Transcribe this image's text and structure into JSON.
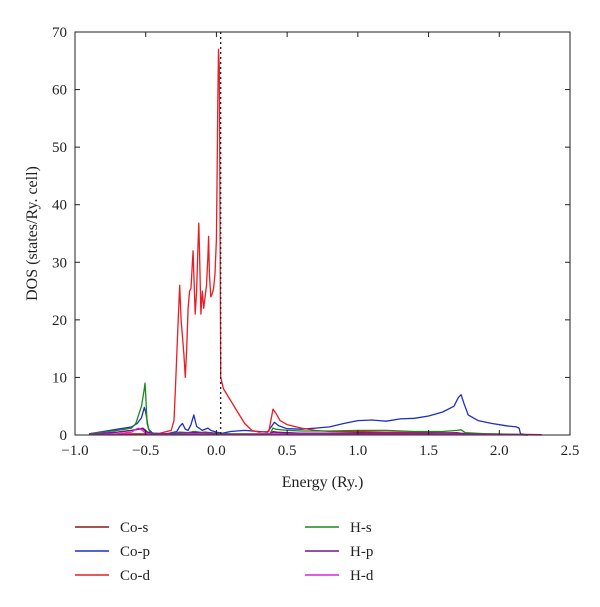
{
  "chart_data": {
    "type": "line",
    "xlabel": "Energy (Ry.)",
    "ylabel": "DOS (states/Ry. cell)",
    "xlim": [
      -1.0,
      2.5
    ],
    "ylim": [
      0,
      70
    ],
    "xticks": [
      "−1.0",
      "−0.5",
      "0.0",
      "0.5",
      "1.0",
      "1.5",
      "2.0",
      "2.5"
    ],
    "xtick_values": [
      -1.0,
      -0.5,
      0.0,
      0.5,
      1.0,
      1.5,
      2.0,
      2.5
    ],
    "yticks": [
      "0",
      "10",
      "20",
      "30",
      "40",
      "50",
      "60",
      "70"
    ],
    "ytick_values": [
      0,
      10,
      20,
      30,
      40,
      50,
      60,
      70
    ],
    "fermi_level": 0.03,
    "grid": false,
    "legend_position": "bottom",
    "series": [
      {
        "name": "Co-s",
        "color": "#8b1a1a",
        "points": [
          [
            -0.9,
            0.1
          ],
          [
            -0.8,
            0.3
          ],
          [
            -0.7,
            0.5
          ],
          [
            -0.6,
            0.8
          ],
          [
            -0.55,
            1.0
          ],
          [
            -0.52,
            1.2
          ],
          [
            -0.5,
            0.8
          ],
          [
            -0.48,
            0.3
          ],
          [
            -0.4,
            0.1
          ],
          [
            -0.3,
            0.2
          ],
          [
            -0.26,
            0.5
          ],
          [
            -0.24,
            0.3
          ],
          [
            -0.2,
            0.4
          ],
          [
            -0.16,
            0.6
          ],
          [
            -0.12,
            0.4
          ],
          [
            -0.08,
            0.5
          ],
          [
            -0.04,
            0.4
          ],
          [
            0.0,
            0.3
          ],
          [
            0.02,
            0.2
          ],
          [
            0.05,
            0.1
          ],
          [
            0.2,
            0.1
          ],
          [
            0.38,
            0.2
          ],
          [
            0.4,
            0.6
          ],
          [
            0.43,
            0.5
          ],
          [
            0.5,
            0.4
          ],
          [
            0.6,
            0.3
          ],
          [
            0.8,
            0.3
          ],
          [
            1.0,
            0.4
          ],
          [
            1.2,
            0.4
          ],
          [
            1.5,
            0.4
          ],
          [
            1.7,
            0.3
          ],
          [
            1.75,
            0.2
          ],
          [
            1.9,
            0.1
          ],
          [
            2.1,
            0.05
          ],
          [
            2.2,
            0.0
          ]
        ]
      },
      {
        "name": "Co-p",
        "color": "#1c2fc4",
        "points": [
          [
            -0.9,
            0.2
          ],
          [
            -0.8,
            0.6
          ],
          [
            -0.7,
            1.0
          ],
          [
            -0.6,
            1.4
          ],
          [
            -0.56,
            2.0
          ],
          [
            -0.53,
            3.0
          ],
          [
            -0.51,
            4.8
          ],
          [
            -0.5,
            4.0
          ],
          [
            -0.48,
            1.0
          ],
          [
            -0.45,
            0.3
          ],
          [
            -0.35,
            0.2
          ],
          [
            -0.28,
            0.6
          ],
          [
            -0.26,
            1.5
          ],
          [
            -0.24,
            2.0
          ],
          [
            -0.22,
            1.0
          ],
          [
            -0.2,
            0.8
          ],
          [
            -0.18,
            1.8
          ],
          [
            -0.16,
            3.5
          ],
          [
            -0.14,
            1.5
          ],
          [
            -0.1,
            0.8
          ],
          [
            -0.06,
            1.2
          ],
          [
            -0.04,
            0.8
          ],
          [
            0.0,
            0.5
          ],
          [
            0.04,
            0.3
          ],
          [
            0.1,
            0.6
          ],
          [
            0.2,
            0.8
          ],
          [
            0.3,
            0.6
          ],
          [
            0.36,
            0.5
          ],
          [
            0.39,
            1.5
          ],
          [
            0.41,
            2.2
          ],
          [
            0.44,
            1.6
          ],
          [
            0.5,
            1.1
          ],
          [
            0.6,
            1.0
          ],
          [
            0.7,
            1.2
          ],
          [
            0.8,
            1.4
          ],
          [
            0.9,
            2.0
          ],
          [
            1.0,
            2.5
          ],
          [
            1.1,
            2.6
          ],
          [
            1.2,
            2.4
          ],
          [
            1.3,
            2.8
          ],
          [
            1.4,
            2.9
          ],
          [
            1.5,
            3.3
          ],
          [
            1.6,
            4.0
          ],
          [
            1.68,
            5.0
          ],
          [
            1.71,
            6.5
          ],
          [
            1.73,
            7.0
          ],
          [
            1.75,
            5.5
          ],
          [
            1.78,
            3.5
          ],
          [
            1.85,
            2.5
          ],
          [
            1.95,
            2.0
          ],
          [
            2.05,
            1.6
          ],
          [
            2.12,
            1.4
          ],
          [
            2.14,
            1.2
          ],
          [
            2.15,
            0.2
          ],
          [
            2.2,
            0.0
          ]
        ]
      },
      {
        "name": "Co-d",
        "color": "#ea1c24",
        "points": [
          [
            -0.9,
            0.1
          ],
          [
            -0.6,
            0.2
          ],
          [
            -0.5,
            0.2
          ],
          [
            -0.4,
            0.3
          ],
          [
            -0.32,
            0.8
          ],
          [
            -0.3,
            2.5
          ],
          [
            -0.29,
            8.0
          ],
          [
            -0.28,
            14.0
          ],
          [
            -0.27,
            20.0
          ],
          [
            -0.26,
            26.0
          ],
          [
            -0.255,
            23.0
          ],
          [
            -0.25,
            20.0
          ],
          [
            -0.24,
            17.0
          ],
          [
            -0.23,
            14.0
          ],
          [
            -0.22,
            10.0
          ],
          [
            -0.21,
            15.0
          ],
          [
            -0.2,
            22.0
          ],
          [
            -0.19,
            25.0
          ],
          [
            -0.18,
            25.5
          ],
          [
            -0.17,
            30.0
          ],
          [
            -0.165,
            32.0
          ],
          [
            -0.16,
            28.0
          ],
          [
            -0.15,
            21.0
          ],
          [
            -0.14,
            25.0
          ],
          [
            -0.13,
            33.0
          ],
          [
            -0.125,
            36.8
          ],
          [
            -0.12,
            32.0
          ],
          [
            -0.11,
            21.0
          ],
          [
            -0.1,
            25.0
          ],
          [
            -0.09,
            22.0
          ],
          [
            -0.08,
            24.0
          ],
          [
            -0.07,
            26.0
          ],
          [
            -0.06,
            31.0
          ],
          [
            -0.055,
            34.5
          ],
          [
            -0.05,
            28.0
          ],
          [
            -0.04,
            24.0
          ],
          [
            -0.03,
            24.5
          ],
          [
            -0.02,
            25.5
          ],
          [
            -0.01,
            28.0
          ],
          [
            0.0,
            34.0
          ],
          [
            0.005,
            45.0
          ],
          [
            0.01,
            58.0
          ],
          [
            0.015,
            67.0
          ],
          [
            0.02,
            64.0
          ],
          [
            0.025,
            40.0
          ],
          [
            0.03,
            10.0
          ],
          [
            0.05,
            8.0
          ],
          [
            0.1,
            6.0
          ],
          [
            0.15,
            4.0
          ],
          [
            0.2,
            2.0
          ],
          [
            0.25,
            0.8
          ],
          [
            0.3,
            0.5
          ],
          [
            0.37,
            0.6
          ],
          [
            0.4,
            4.5
          ],
          [
            0.42,
            3.8
          ],
          [
            0.45,
            2.5
          ],
          [
            0.5,
            1.8
          ],
          [
            0.6,
            1.2
          ],
          [
            0.7,
            0.8
          ],
          [
            0.8,
            0.6
          ],
          [
            1.0,
            0.6
          ],
          [
            1.2,
            0.5
          ],
          [
            1.5,
            0.4
          ],
          [
            1.7,
            0.3
          ],
          [
            1.9,
            0.2
          ],
          [
            2.2,
            0.1
          ],
          [
            2.3,
            0.05
          ]
        ]
      },
      {
        "name": "H-s",
        "color": "#1a8a1a",
        "points": [
          [
            -0.9,
            0.2
          ],
          [
            -0.8,
            0.5
          ],
          [
            -0.7,
            0.8
          ],
          [
            -0.6,
            1.2
          ],
          [
            -0.57,
            2.0
          ],
          [
            -0.55,
            3.5
          ],
          [
            -0.53,
            5.0
          ],
          [
            -0.51,
            8.0
          ],
          [
            -0.505,
            9.0
          ],
          [
            -0.5,
            7.0
          ],
          [
            -0.49,
            2.0
          ],
          [
            -0.47,
            0.4
          ],
          [
            -0.4,
            0.2
          ],
          [
            -0.3,
            0.3
          ],
          [
            -0.25,
            0.5
          ],
          [
            -0.2,
            0.4
          ],
          [
            -0.15,
            0.6
          ],
          [
            -0.1,
            0.4
          ],
          [
            0.0,
            0.3
          ],
          [
            0.1,
            0.2
          ],
          [
            0.3,
            0.2
          ],
          [
            0.38,
            0.3
          ],
          [
            0.4,
            1.2
          ],
          [
            0.42,
            1.0
          ],
          [
            0.5,
            0.8
          ],
          [
            0.6,
            0.7
          ],
          [
            0.8,
            0.7
          ],
          [
            1.0,
            0.8
          ],
          [
            1.2,
            0.8
          ],
          [
            1.4,
            0.6
          ],
          [
            1.6,
            0.6
          ],
          [
            1.7,
            0.8
          ],
          [
            1.73,
            0.9
          ],
          [
            1.76,
            0.4
          ],
          [
            1.9,
            0.2
          ],
          [
            2.1,
            0.1
          ],
          [
            2.2,
            0.0
          ]
        ]
      },
      {
        "name": "H-p",
        "color": "#6a1a8a",
        "points": [
          [
            -0.9,
            0.1
          ],
          [
            -0.8,
            0.3
          ],
          [
            -0.7,
            0.5
          ],
          [
            -0.6,
            0.8
          ],
          [
            -0.55,
            1.0
          ],
          [
            -0.52,
            1.1
          ],
          [
            -0.5,
            0.6
          ],
          [
            -0.45,
            0.2
          ],
          [
            -0.3,
            0.2
          ],
          [
            -0.25,
            0.3
          ],
          [
            -0.2,
            0.3
          ],
          [
            -0.15,
            0.4
          ],
          [
            -0.1,
            0.3
          ],
          [
            0.0,
            0.2
          ],
          [
            0.1,
            0.1
          ],
          [
            0.3,
            0.1
          ],
          [
            0.38,
            0.2
          ],
          [
            0.4,
            0.5
          ],
          [
            0.45,
            0.4
          ],
          [
            0.6,
            0.3
          ],
          [
            0.8,
            0.3
          ],
          [
            1.0,
            0.3
          ],
          [
            1.3,
            0.3
          ],
          [
            1.5,
            0.3
          ],
          [
            1.7,
            0.4
          ],
          [
            1.75,
            0.2
          ],
          [
            1.9,
            0.1
          ],
          [
            2.2,
            0.0
          ]
        ]
      },
      {
        "name": "H-d",
        "color": "#e020e0",
        "points": [
          [
            -0.9,
            0.05
          ],
          [
            -0.7,
            0.2
          ],
          [
            -0.6,
            0.5
          ],
          [
            -0.57,
            1.0
          ],
          [
            -0.55,
            1.2
          ],
          [
            -0.53,
            0.9
          ],
          [
            -0.5,
            0.3
          ],
          [
            -0.45,
            0.1
          ],
          [
            -0.3,
            0.1
          ],
          [
            -0.2,
            0.2
          ],
          [
            -0.1,
            0.2
          ],
          [
            0.0,
            0.1
          ],
          [
            0.2,
            0.1
          ],
          [
            0.4,
            0.2
          ],
          [
            0.6,
            0.15
          ],
          [
            1.0,
            0.1
          ],
          [
            1.5,
            0.1
          ],
          [
            2.0,
            0.05
          ],
          [
            2.3,
            0.0
          ]
        ]
      }
    ]
  }
}
